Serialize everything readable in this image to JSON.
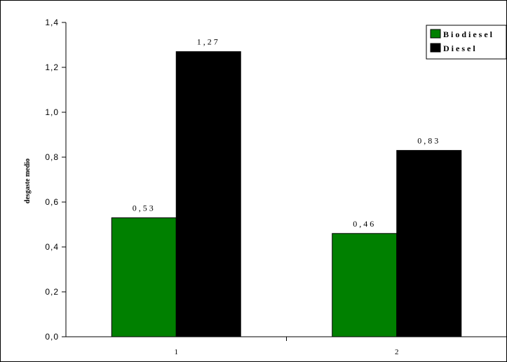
{
  "chart_data": {
    "type": "bar",
    "categories": [
      "1",
      "2"
    ],
    "series": [
      {
        "name": "Biodiesel",
        "values": [
          0.53,
          0.46
        ],
        "labels": [
          "0,53",
          "0,46"
        ],
        "color": "#008000"
      },
      {
        "name": "Diesel",
        "values": [
          1.27,
          0.83
        ],
        "labels": [
          "1,27",
          "0,83"
        ],
        "color": "#000000"
      }
    ],
    "title": "",
    "xlabel": "",
    "ylabel": "desgaste medio",
    "ylim": [
      0,
      1.4
    ],
    "yticks": [
      0,
      0.2,
      0.4,
      0.6,
      0.8,
      1.0,
      1.2,
      1.4
    ],
    "ytick_labels": [
      "0,0",
      "0,2",
      "0,4",
      "0,6",
      "0,8",
      "1,0",
      "1,2",
      "1,4"
    ],
    "grid": false,
    "legend_position": "top-right"
  }
}
